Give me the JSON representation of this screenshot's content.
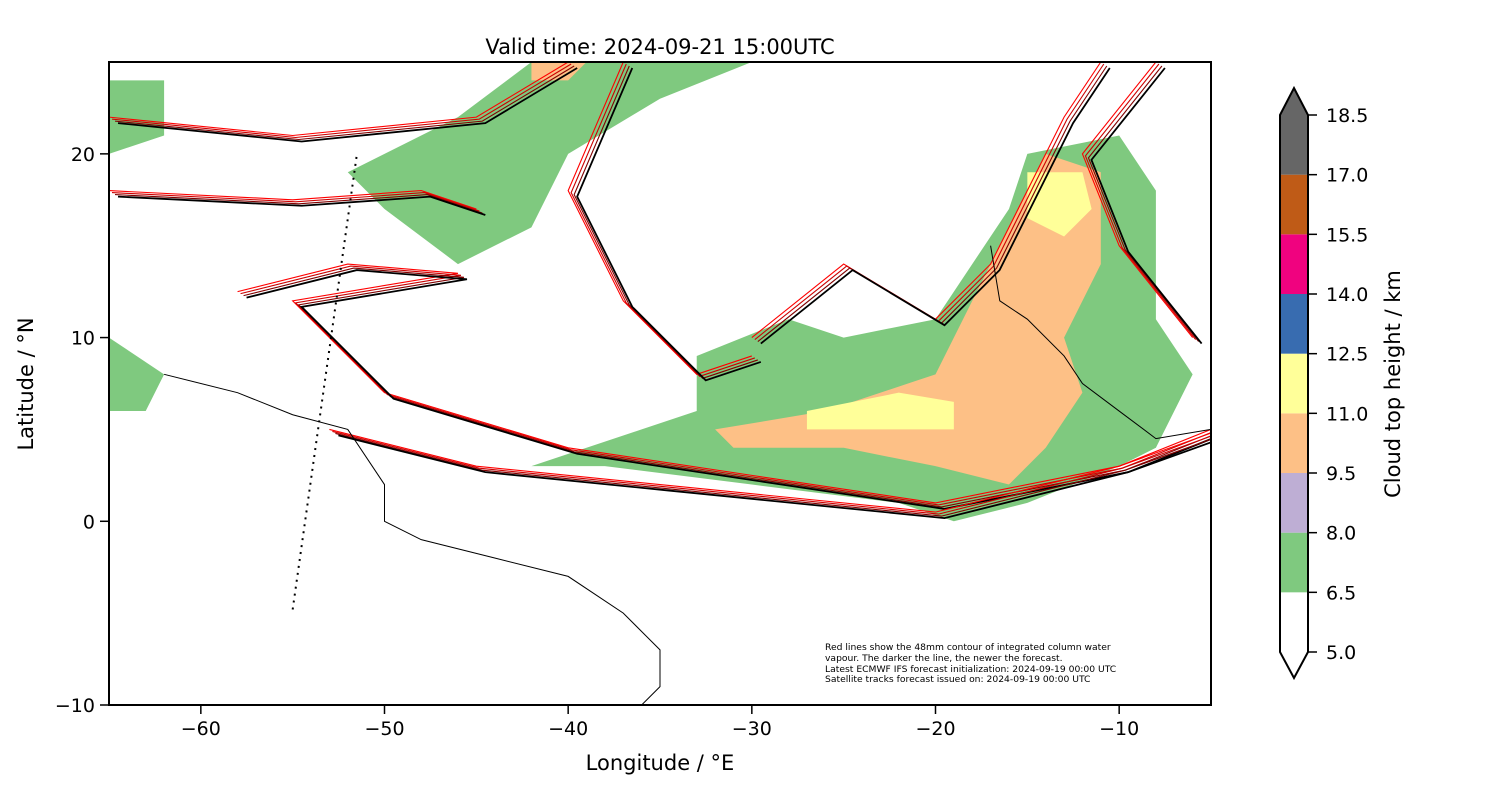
{
  "chart_data": {
    "type": "heatmap",
    "title": "Valid time: 2024-09-21 15:00UTC",
    "xlabel": "Longitude / °E",
    "ylabel": "Latitude / °N",
    "xlim": [
      -65,
      -5
    ],
    "ylim": [
      -10,
      25
    ],
    "xticks": [
      -60,
      -50,
      -40,
      -30,
      -20,
      -10
    ],
    "xtick_labels": [
      "−60",
      "−50",
      "−40",
      "−30",
      "−20",
      "−10"
    ],
    "yticks": [
      -10,
      0,
      10,
      20
    ],
    "ytick_labels": [
      "−10",
      "0",
      "10",
      "20"
    ],
    "colorbar": {
      "label": "Cloud top height / km",
      "levels": [
        5.0,
        6.5,
        8.0,
        9.5,
        11.0,
        12.5,
        14.0,
        15.5,
        17.0,
        18.5
      ],
      "tick_labels": [
        "5.0",
        "6.5",
        "8.0",
        "9.5",
        "11.0",
        "12.5",
        "14.0",
        "15.5",
        "17.0",
        "18.5"
      ],
      "colors": [
        "#ffffff",
        "#7fc97f",
        "#beaed4",
        "#fdc086",
        "#ffff99",
        "#386cb0",
        "#f0027f",
        "#bf5b17",
        "#666666"
      ],
      "extend": "both"
    },
    "cloud_regions": [
      {
        "level": "#7fc97f",
        "lonlat": [
          [
            -42,
            25
          ],
          [
            -30,
            25
          ],
          [
            -35,
            23
          ],
          [
            -40,
            20
          ],
          [
            -42,
            16
          ],
          [
            -46,
            14
          ],
          [
            -50,
            17
          ],
          [
            -52,
            19
          ],
          [
            -46,
            22
          ]
        ]
      },
      {
        "level": "#7fc97f",
        "lonlat": [
          [
            -33,
            9
          ],
          [
            -28,
            11
          ],
          [
            -25,
            10
          ],
          [
            -20,
            11
          ],
          [
            -16,
            17
          ],
          [
            -15,
            20
          ],
          [
            -10,
            21
          ],
          [
            -8,
            18
          ],
          [
            -8,
            11
          ],
          [
            -6,
            8
          ],
          [
            -8,
            4
          ],
          [
            -10,
            3
          ],
          [
            -15,
            1
          ],
          [
            -19,
            0
          ],
          [
            -22,
            1
          ],
          [
            -30,
            2
          ],
          [
            -38,
            3
          ],
          [
            -42,
            3
          ],
          [
            -36,
            5
          ],
          [
            -33,
            6
          ]
        ]
      },
      {
        "level": "#7fc97f",
        "lonlat": [
          [
            -65,
            24
          ],
          [
            -62,
            24
          ],
          [
            -62,
            21
          ],
          [
            -65,
            20
          ]
        ]
      },
      {
        "level": "#7fc97f",
        "lonlat": [
          [
            -65,
            10
          ],
          [
            -62,
            8
          ],
          [
            -63,
            6
          ],
          [
            -65,
            6
          ]
        ]
      },
      {
        "level": "#fdc086",
        "lonlat": [
          [
            -32,
            5
          ],
          [
            -26,
            6
          ],
          [
            -20,
            8
          ],
          [
            -18,
            12
          ],
          [
            -16,
            16
          ],
          [
            -14,
            20
          ],
          [
            -11,
            19
          ],
          [
            -11,
            14
          ],
          [
            -13,
            10
          ],
          [
            -12,
            7
          ],
          [
            -14,
            4
          ],
          [
            -16,
            2
          ],
          [
            -20,
            3
          ],
          [
            -25,
            4
          ],
          [
            -31,
            4
          ]
        ]
      },
      {
        "level": "#ffff99",
        "lonlat": [
          [
            -15,
            19
          ],
          [
            -12,
            19
          ],
          [
            -11.5,
            17
          ],
          [
            -13,
            15.5
          ],
          [
            -15,
            16.5
          ]
        ]
      },
      {
        "level": "#ffff99",
        "lonlat": [
          [
            -27,
            6
          ],
          [
            -22,
            7
          ],
          [
            -19,
            6.5
          ],
          [
            -19,
            5
          ],
          [
            -23,
            5
          ],
          [
            -27,
            5
          ]
        ]
      },
      {
        "level": "#fdc086",
        "lonlat": [
          [
            -42,
            25
          ],
          [
            -39,
            25
          ],
          [
            -40,
            24
          ],
          [
            -42,
            24
          ]
        ]
      }
    ],
    "satellite_track": [
      [
        -55,
        -4.8
      ],
      [
        -51.5,
        20
      ]
    ],
    "contours_48mm": [
      [
        [
          -65,
          22
        ],
        [
          -55,
          21
        ],
        [
          -45,
          22
        ],
        [
          -40,
          25
        ]
      ],
      [
        [
          -65,
          18
        ],
        [
          -55,
          17.5
        ],
        [
          -48,
          18
        ],
        [
          -45,
          17
        ]
      ],
      [
        [
          -58,
          12.5
        ],
        [
          -52,
          14
        ],
        [
          -46,
          13.5
        ],
        [
          -55,
          12
        ],
        [
          -50,
          7
        ],
        [
          -40,
          4
        ],
        [
          -30,
          2.5
        ],
        [
          -20,
          1
        ],
        [
          -10,
          3
        ],
        [
          -5,
          5
        ]
      ],
      [
        [
          -53,
          5
        ],
        [
          -45,
          3
        ],
        [
          -35,
          2
        ],
        [
          -20,
          0.5
        ],
        [
          -10,
          3
        ],
        [
          -5,
          4.8
        ]
      ],
      [
        [
          -37,
          25
        ],
        [
          -40,
          18
        ],
        [
          -37,
          12
        ],
        [
          -33,
          8
        ],
        [
          -30,
          9
        ]
      ],
      [
        [
          -30,
          10
        ],
        [
          -25,
          14
        ],
        [
          -20,
          11
        ],
        [
          -17,
          14
        ],
        [
          -13,
          22
        ],
        [
          -11,
          25
        ]
      ],
      [
        [
          -8,
          25
        ],
        [
          -12,
          20
        ],
        [
          -10,
          15
        ],
        [
          -6,
          10
        ]
      ]
    ]
  }
}
